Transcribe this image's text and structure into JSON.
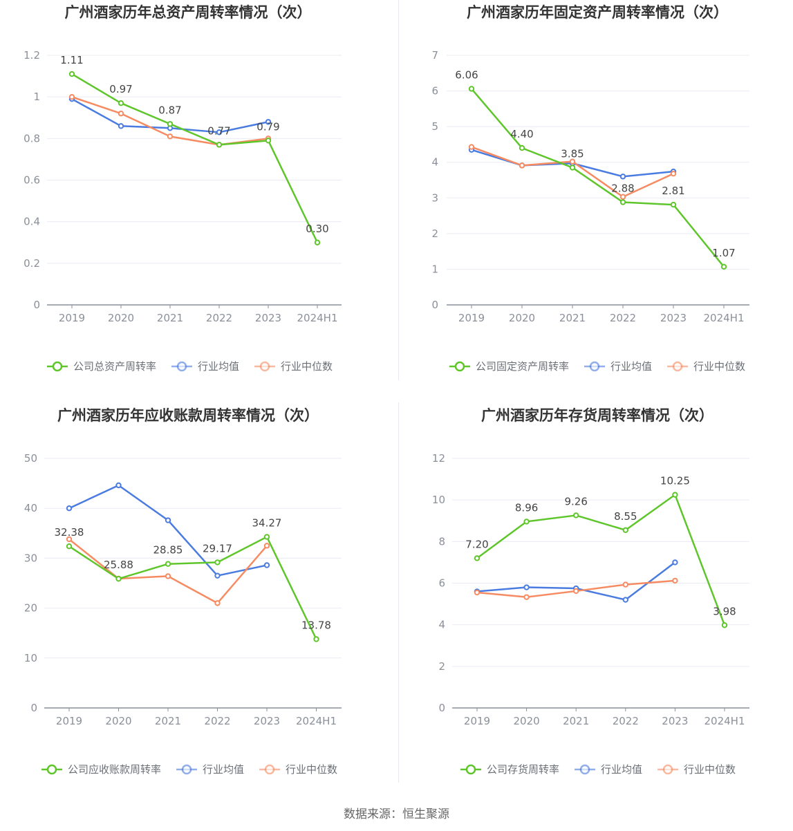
{
  "footer_text": "数据来源：恒生聚源",
  "colors": {
    "company": "#5ec62a",
    "industry_avg": "#4a7be0",
    "industry_median": "#f68b62",
    "grid": "#e8ebf2",
    "axis": "#8a8f99"
  },
  "chart_data": [
    {
      "type": "line",
      "title": "广州酒家历年总资产周转率情况（次）",
      "categories": [
        "2019",
        "2020",
        "2021",
        "2022",
        "2023",
        "2024H1"
      ],
      "ylim": [
        0,
        1.2
      ],
      "yticks": [
        "0",
        "0.2",
        "0.4",
        "0.6",
        "0.8",
        "1",
        "1.2"
      ],
      "grid": true,
      "legend_position": "bottom",
      "series": [
        {
          "name": "公司总资产周转率",
          "color": "#5ec62a",
          "values": [
            1.11,
            0.97,
            0.87,
            0.77,
            0.79,
            0.3
          ],
          "labels": [
            "1.11",
            "0.97",
            "0.87",
            "0.77",
            "0.79",
            "0.30"
          ]
        },
        {
          "name": "行业均值",
          "color": "#4a7be0",
          "values": [
            0.99,
            0.86,
            0.85,
            0.83,
            0.88,
            null
          ]
        },
        {
          "name": "行业中位数",
          "color": "#f68b62",
          "values": [
            1.0,
            0.92,
            0.81,
            0.77,
            0.8,
            null
          ]
        }
      ]
    },
    {
      "type": "line",
      "title": "广州酒家历年固定资产周转率情况（次）",
      "categories": [
        "2019",
        "2020",
        "2021",
        "2022",
        "2023",
        "2024H1"
      ],
      "ylim": [
        0,
        7
      ],
      "yticks": [
        "0",
        "1",
        "2",
        "3",
        "4",
        "5",
        "6",
        "7"
      ],
      "grid": true,
      "legend_position": "bottom",
      "series": [
        {
          "name": "公司固定资产周转率",
          "color": "#5ec62a",
          "values": [
            6.06,
            4.4,
            3.85,
            2.88,
            2.81,
            1.07
          ],
          "labels": [
            "6.06",
            "4.40",
            "3.85",
            "2.88",
            "2.81",
            "1.07"
          ]
        },
        {
          "name": "行业均值",
          "color": "#4a7be0",
          "values": [
            4.35,
            3.91,
            3.97,
            3.6,
            3.74,
            null
          ]
        },
        {
          "name": "行业中位数",
          "color": "#f68b62",
          "values": [
            4.43,
            3.91,
            4.02,
            3.03,
            3.68,
            null
          ]
        }
      ]
    },
    {
      "type": "line",
      "title": "广州酒家历年应收账款周转率情况（次）",
      "categories": [
        "2019",
        "2020",
        "2021",
        "2022",
        "2023",
        "2024H1"
      ],
      "ylim": [
        0,
        50
      ],
      "yticks": [
        "0",
        "10",
        "20",
        "30",
        "40",
        "50"
      ],
      "grid": true,
      "legend_position": "bottom",
      "series": [
        {
          "name": "公司应收账款周转率",
          "color": "#5ec62a",
          "values": [
            32.38,
            25.88,
            28.85,
            29.17,
            34.27,
            13.78
          ],
          "labels": [
            "32.38",
            "25.88",
            "28.85",
            "29.17",
            "34.27",
            "13.78"
          ]
        },
        {
          "name": "行业均值",
          "color": "#4a7be0",
          "values": [
            40.0,
            44.6,
            37.6,
            26.5,
            28.6,
            null
          ]
        },
        {
          "name": "行业中位数",
          "color": "#f68b62",
          "values": [
            33.8,
            25.9,
            26.4,
            21.0,
            32.5,
            null
          ]
        }
      ]
    },
    {
      "type": "line",
      "title": "广州酒家历年存货周转率情况（次）",
      "categories": [
        "2019",
        "2020",
        "2021",
        "2022",
        "2023",
        "2024H1"
      ],
      "ylim": [
        0,
        12
      ],
      "yticks": [
        "0",
        "2",
        "4",
        "6",
        "8",
        "10",
        "12"
      ],
      "grid": true,
      "legend_position": "bottom",
      "series": [
        {
          "name": "公司存货周转率",
          "color": "#5ec62a",
          "values": [
            7.2,
            8.96,
            9.26,
            8.55,
            10.25,
            3.98
          ],
          "labels": [
            "7.20",
            "8.96",
            "9.26",
            "8.55",
            "10.25",
            "3.98"
          ]
        },
        {
          "name": "行业均值",
          "color": "#4a7be0",
          "values": [
            5.6,
            5.8,
            5.75,
            5.2,
            7.0,
            null
          ]
        },
        {
          "name": "行业中位数",
          "color": "#f68b62",
          "values": [
            5.55,
            5.33,
            5.62,
            5.93,
            6.12,
            null
          ]
        }
      ]
    }
  ]
}
